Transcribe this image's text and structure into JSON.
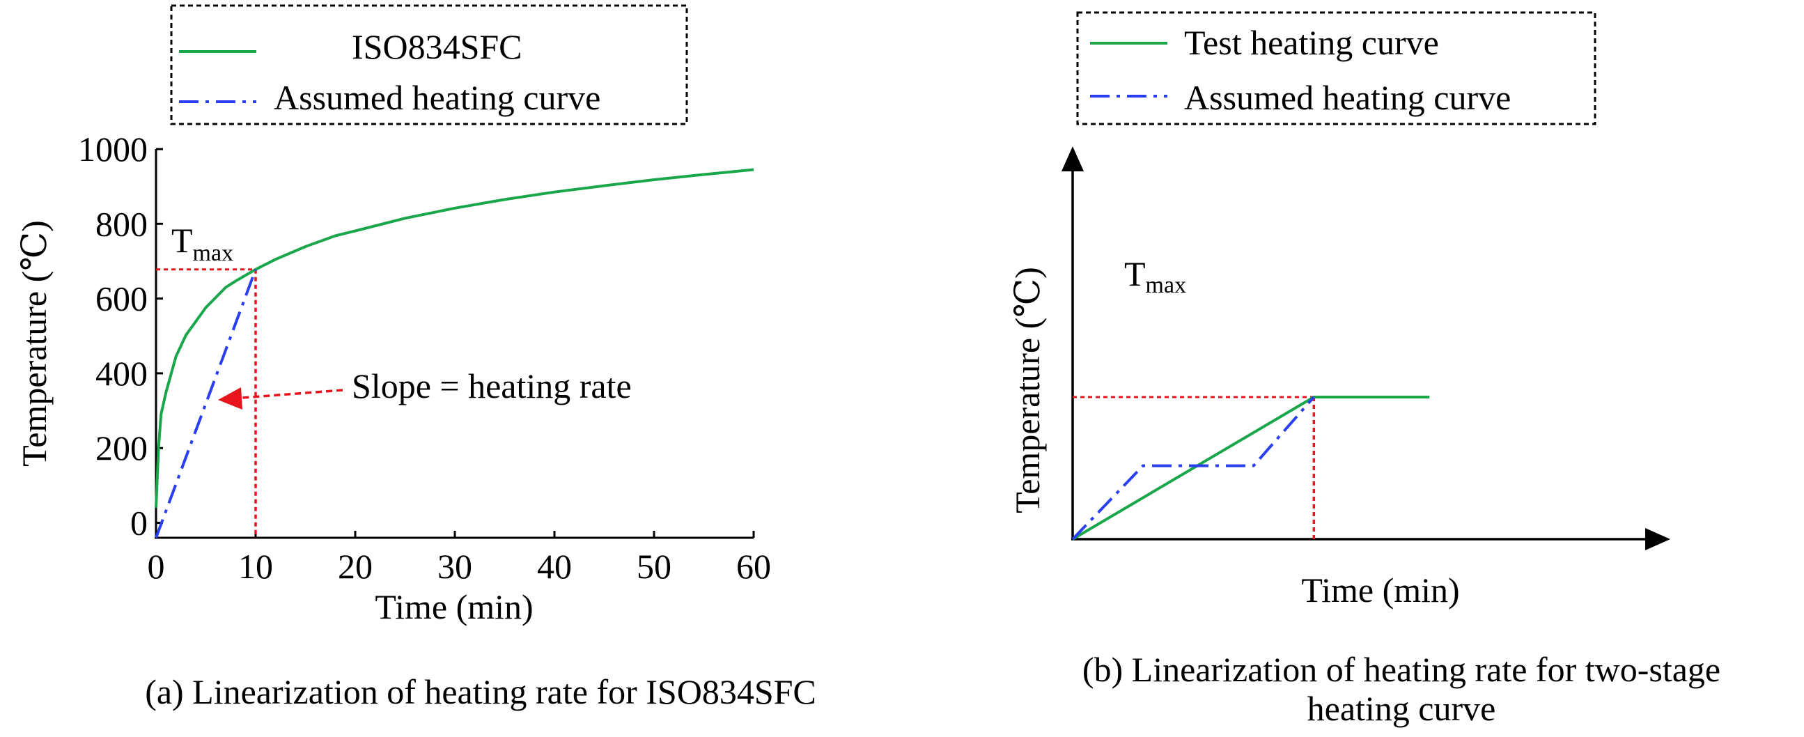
{
  "chart_data": [
    {
      "type": "line",
      "caption": "(a) Linearization of heating rate for ISO834SFC",
      "xlabel": "Time (min)",
      "ylabel": "Temperature (℃)",
      "xlim": [
        0,
        60
      ],
      "ylim": [
        -40,
        1000
      ],
      "xticks": [
        0,
        10,
        20,
        30,
        40,
        50,
        60
      ],
      "yticks": [
        0,
        200,
        400,
        600,
        800,
        1000
      ],
      "grid": false,
      "legend_position": "top",
      "tmax_label": {
        "main": "T",
        "sub": "max"
      },
      "annotation": "Slope = heating rate",
      "tmax_point": {
        "x": 10,
        "y": 678
      },
      "series": [
        {
          "name": "ISO834SFC",
          "color": "#1aa64b",
          "style": "solid",
          "points": [
            [
              0,
              40
            ],
            [
              0.25,
              200
            ],
            [
              0.5,
              290
            ],
            [
              1,
              349
            ],
            [
              2,
              445
            ],
            [
              3,
              502
            ],
            [
              5,
              576
            ],
            [
              7,
              630
            ],
            [
              8,
              647
            ],
            [
              10,
              678
            ],
            [
              12,
              705
            ],
            [
              15,
              739
            ],
            [
              18,
              768
            ],
            [
              20,
              781
            ],
            [
              25,
              815
            ],
            [
              30,
              842
            ],
            [
              35,
              865
            ],
            [
              40,
              885
            ],
            [
              45,
              902
            ],
            [
              50,
              918
            ],
            [
              55,
              932
            ],
            [
              60,
              945
            ]
          ]
        },
        {
          "name": "Assumed heating curve",
          "color": "#2b3ff2",
          "style": "dashdot",
          "points": [
            [
              0,
              -40
            ],
            [
              10,
              678
            ]
          ]
        }
      ]
    },
    {
      "type": "line",
      "caption": "(b) Linearization of heating rate for two-stage heating curve",
      "caption_lines": [
        "(b) Linearization of heating rate for two-stage",
        "heating curve"
      ],
      "xlabel": "Time (min)",
      "ylabel": "Temperature (℃)",
      "xlim": [
        0,
        10
      ],
      "ylim": [
        0,
        10
      ],
      "axis_ticks": false,
      "grid": false,
      "legend_position": "top",
      "tmax_label": {
        "main": "T",
        "sub": "max"
      },
      "tmax_point": {
        "x": 4.8,
        "y": 6
      },
      "series": [
        {
          "name": "Test heating curve",
          "color": "#1aa64b",
          "style": "solid",
          "points": [
            [
              0,
              0
            ],
            [
              4.8,
              6
            ],
            [
              7.1,
              6
            ]
          ]
        },
        {
          "name": "Assumed heating curve",
          "color": "#2b3ff2",
          "style": "dashdot",
          "points": [
            [
              0,
              0
            ],
            [
              1.4,
              3.1
            ],
            [
              3.6,
              3.1
            ],
            [
              4.8,
              6
            ]
          ]
        }
      ]
    }
  ]
}
